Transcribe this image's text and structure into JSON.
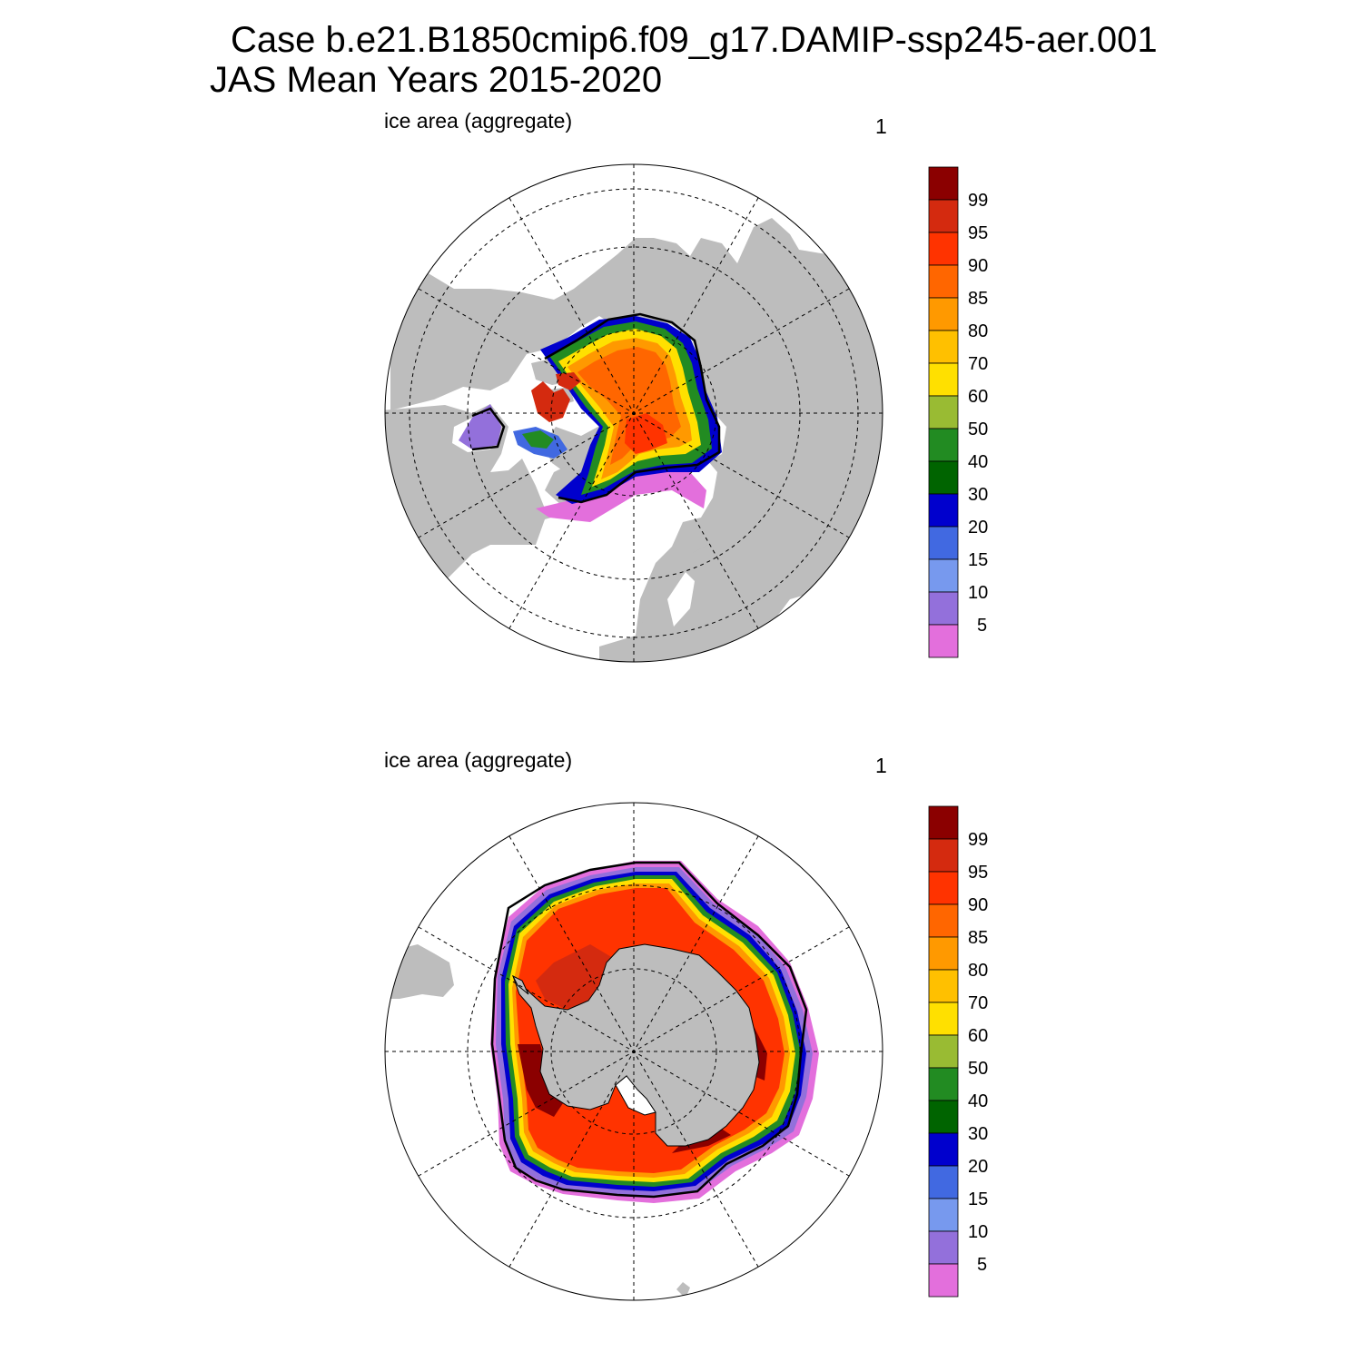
{
  "title": {
    "line1": "Case b.e21.B1850cmip6.f09_g17.DAMIP-ssp245-aer.001",
    "line2": "JAS Mean   Years 2015-2020"
  },
  "panels": [
    {
      "name": "north",
      "label": "ice area  (aggregate)",
      "number": "1"
    },
    {
      "name": "south",
      "label": "ice area  (aggregate)",
      "number": "1"
    }
  ],
  "colorbar": {
    "labels": [
      "99",
      "95",
      "90",
      "85",
      "80",
      "70",
      "60",
      "50",
      "40",
      "30",
      "20",
      "15",
      "10",
      "5"
    ],
    "colors": [
      "#8b0000",
      "#d42a0f",
      "#ff3300",
      "#ff6600",
      "#ff9900",
      "#ffc000",
      "#ffe000",
      "#99bb33",
      "#228b22",
      "#006400",
      "#0000cd",
      "#4169e1",
      "#7799ee",
      "#9370db",
      "#e36fdc"
    ]
  },
  "map_colors": {
    "land": "#bdbdbd",
    "ocean": "#ffffff",
    "edge_line": "#000000"
  }
}
